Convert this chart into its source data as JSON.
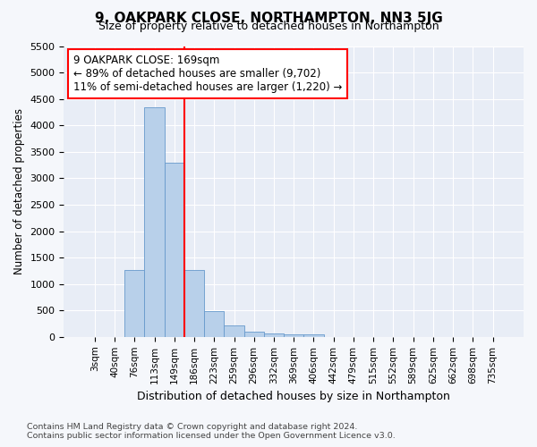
{
  "title": "9, OAKPARK CLOSE, NORTHAMPTON, NN3 5JG",
  "subtitle": "Size of property relative to detached houses in Northampton",
  "xlabel": "Distribution of detached houses by size in Northampton",
  "ylabel": "Number of detached properties",
  "bar_color": "#b8d0ea",
  "bar_edge_color": "#6699cc",
  "bar_categories": [
    "3sqm",
    "40sqm",
    "76sqm",
    "113sqm",
    "149sqm",
    "186sqm",
    "223sqm",
    "259sqm",
    "296sqm",
    "332sqm",
    "369sqm",
    "406sqm",
    "442sqm",
    "479sqm",
    "515sqm",
    "552sqm",
    "589sqm",
    "625sqm",
    "662sqm",
    "698sqm",
    "735sqm"
  ],
  "bar_values": [
    0,
    0,
    1270,
    4350,
    3300,
    1270,
    480,
    220,
    100,
    70,
    50,
    50,
    0,
    0,
    0,
    0,
    0,
    0,
    0,
    0,
    0
  ],
  "red_line_index": 5,
  "annotation_text": "9 OAKPARK CLOSE: 169sqm\n← 89% of detached houses are smaller (9,702)\n11% of semi-detached houses are larger (1,220) →",
  "ylim_max": 5500,
  "ytick_step": 500,
  "footer_line1": "Contains HM Land Registry data © Crown copyright and database right 2024.",
  "footer_line2": "Contains public sector information licensed under the Open Government Licence v3.0.",
  "bg_color": "#f5f7fb",
  "plot_bg_color": "#e8edf6"
}
